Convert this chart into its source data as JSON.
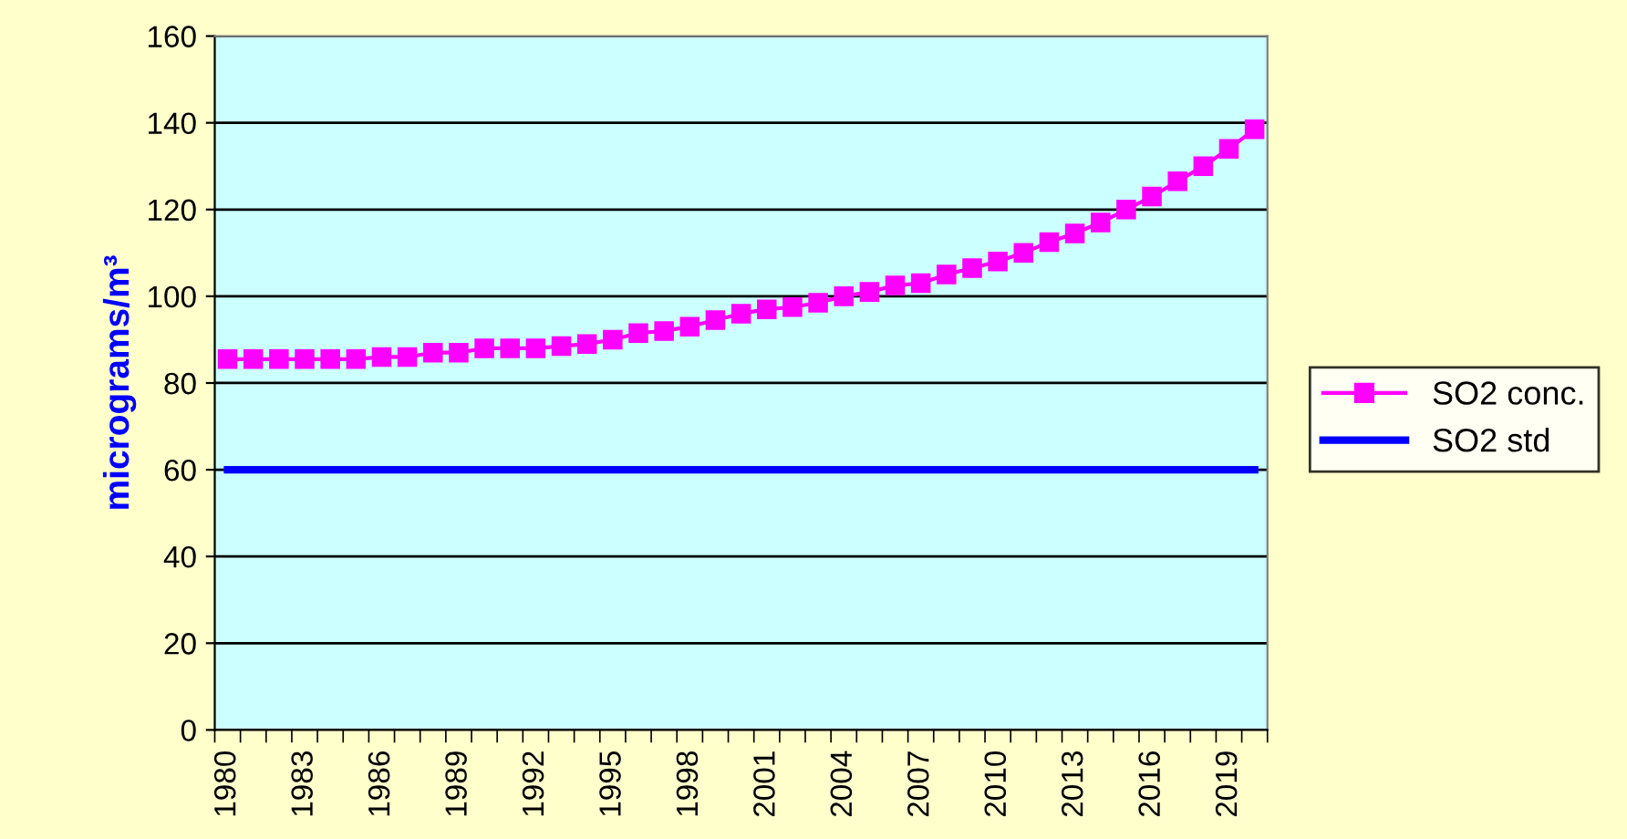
{
  "chart_data": {
    "type": "line",
    "categories": [
      "1980",
      null,
      null,
      "1983",
      null,
      null,
      "1986",
      null,
      null,
      "1989",
      null,
      null,
      "1992",
      null,
      null,
      "1995",
      null,
      null,
      "1998",
      null,
      null,
      "2001",
      null,
      null,
      "2004",
      null,
      null,
      "2007",
      null,
      null,
      "2010",
      null,
      null,
      "2013",
      null,
      null,
      "2016",
      null,
      null,
      "2019",
      null
    ],
    "series": [
      {
        "name": "SO2 conc.",
        "color": "#ff00ff",
        "marker": "square",
        "values": [
          85.5,
          85.5,
          85.5,
          85.5,
          85.5,
          85.5,
          86,
          86,
          87,
          87,
          88,
          88,
          88,
          88.5,
          89,
          90,
          91.5,
          92,
          93,
          94.5,
          96,
          97,
          97.5,
          98.5,
          100,
          101,
          102.5,
          103,
          105,
          106.5,
          108,
          110,
          112.5,
          114.5,
          117,
          120,
          123,
          126.5,
          130,
          134,
          138.5
        ]
      },
      {
        "name": "SO2 std",
        "color": "#0000ff",
        "marker": "none",
        "values": [
          60,
          60,
          60,
          60,
          60,
          60,
          60,
          60,
          60,
          60,
          60,
          60,
          60,
          60,
          60,
          60,
          60,
          60,
          60,
          60,
          60,
          60,
          60,
          60,
          60,
          60,
          60,
          60,
          60,
          60,
          60,
          60,
          60,
          60,
          60,
          60,
          60,
          60,
          60,
          60,
          60
        ]
      }
    ],
    "ylabel": "micrograms/m³",
    "ylim": [
      0,
      160
    ],
    "yticks": [
      0,
      20,
      40,
      60,
      80,
      100,
      120,
      140,
      160
    ],
    "grid": "y",
    "legend": "right"
  }
}
